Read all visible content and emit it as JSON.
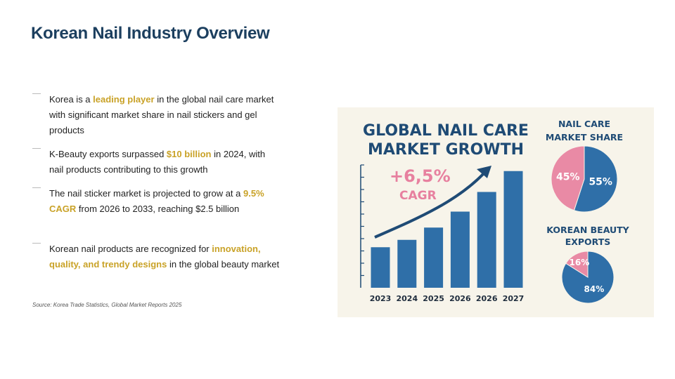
{
  "title": "Korean Nail Industry Overview",
  "bullets": [
    {
      "parts": [
        {
          "text": "Korea is a "
        },
        {
          "text": "leading player",
          "highlight": true
        },
        {
          "text": " in the global nail care market with significant market share in nail stickers and gel products"
        }
      ]
    },
    {
      "parts": [
        {
          "text": "K-Beauty exports surpassed "
        },
        {
          "text": "$10 billion",
          "highlight": true
        },
        {
          "text": " in 2024, with nail products contributing to this growth"
        }
      ]
    },
    {
      "parts": [
        {
          "text": "The nail sticker market is projected to grow at a "
        },
        {
          "text": "9.5% CAGR",
          "highlight": true
        },
        {
          "text": " from 2026 to 2033, reaching $2.5 billion"
        }
      ]
    },
    {
      "parts": [
        {
          "text": "Korean nail products are recognized for "
        },
        {
          "text": "innovation, quality, and trendy designs",
          "highlight": true
        },
        {
          "text": " in the global beauty market"
        }
      ]
    }
  ],
  "source": "Source: Korea Trade Statistics, Global Market Reports 2025",
  "infographic": {
    "title": "GLOBAL NAIL CARE MARKET GROWTH",
    "growth": "+6,5%",
    "growth_label": "CAGR",
    "bar_chart": {
      "type": "bar",
      "categories": [
        "2023",
        "2024",
        "2025",
        "2026",
        "2026",
        "2027"
      ],
      "values": [
        3.3,
        3.9,
        4.9,
        6.2,
        7.8,
        9.5
      ],
      "ylim": [
        0,
        10
      ],
      "yticks": [
        1,
        2,
        3,
        4,
        5,
        6,
        7,
        8,
        9,
        10
      ],
      "color": "#2f6fa8"
    },
    "pies": [
      {
        "type": "pie",
        "title": "NAIL CARE MARKET SHARE",
        "values": [
          55,
          45
        ],
        "value_labels": [
          "55%",
          "45%"
        ],
        "colors": [
          "#2f6fa8",
          "#e98aa5"
        ]
      },
      {
        "type": "pie",
        "title": "KOREAN BEAUTY EXPORTS",
        "values": [
          84,
          16
        ],
        "value_labels": [
          "84%",
          "16%"
        ],
        "colors": [
          "#2f6fa8",
          "#e98aa5"
        ]
      }
    ]
  }
}
